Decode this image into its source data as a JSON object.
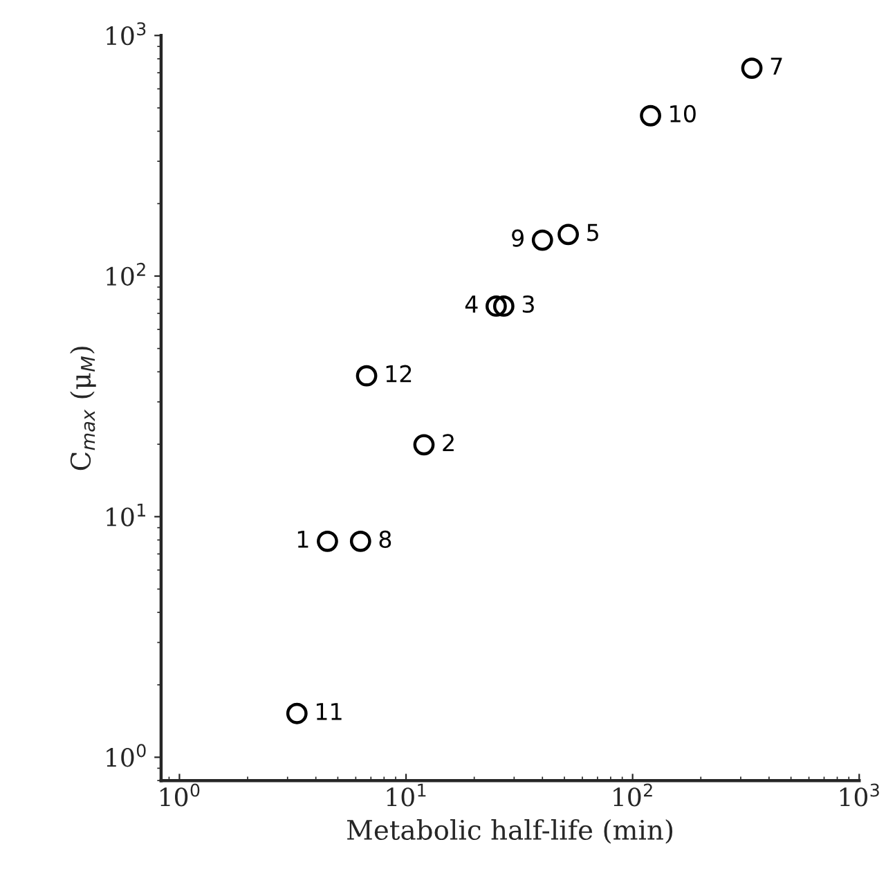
{
  "chart_data": {
    "type": "scatter",
    "xlabel": "Metabolic half-life (min)",
    "ylabel": "C$_{max}$ (μ$_{M}$)",
    "log": "xy",
    "marker": "circle",
    "grid": false,
    "color": "#000000",
    "x": [
      4.5,
      12,
      27,
      25,
      52,
      336,
      6.3,
      40,
      120,
      3.3,
      6.7
    ],
    "values": [
      7.9,
      19.9,
      75,
      75,
      149,
      731,
      7.9,
      141,
      464,
      1.52,
      38.5
    ],
    "annotations": [
      {
        "text": "1",
        "x": 4.5,
        "y": 7.9
      },
      {
        "text": "2",
        "x": 12,
        "y": 19.9
      },
      {
        "text": "3",
        "x": 27,
        "y": 75
      },
      {
        "text": "4",
        "x": 25,
        "y": 75
      },
      {
        "text": "5",
        "x": 52,
        "y": 149
      },
      {
        "text": "7",
        "x": 336,
        "y": 731
      },
      {
        "text": "8",
        "x": 6.3,
        "y": 7.9
      },
      {
        "text": "9",
        "x": 40,
        "y": 141
      },
      {
        "text": "10",
        "x": 120,
        "y": 464
      },
      {
        "text": "11",
        "x": 3.3,
        "y": 1.52
      },
      {
        "text": "12",
        "x": 6.7,
        "y": 38.5
      }
    ],
    "xlim": [
      0.83,
      1000
    ],
    "ylim": [
      0.8,
      1000
    ],
    "xticks": [
      {
        "value": 1,
        "label": "10$^{0}$"
      },
      {
        "value": 10,
        "label": "10$^{1}$"
      },
      {
        "value": 100,
        "label": "10$^{2}$"
      },
      {
        "value": 1000,
        "label": "10$^{3}$"
      }
    ],
    "yticks": [
      {
        "value": 1,
        "label": "10$^{0}$"
      },
      {
        "value": 10,
        "label": "10$^{1}$"
      },
      {
        "value": 100,
        "label": "10$^{2}$"
      },
      {
        "value": 1000,
        "label": "10$^{3}$"
      }
    ]
  }
}
